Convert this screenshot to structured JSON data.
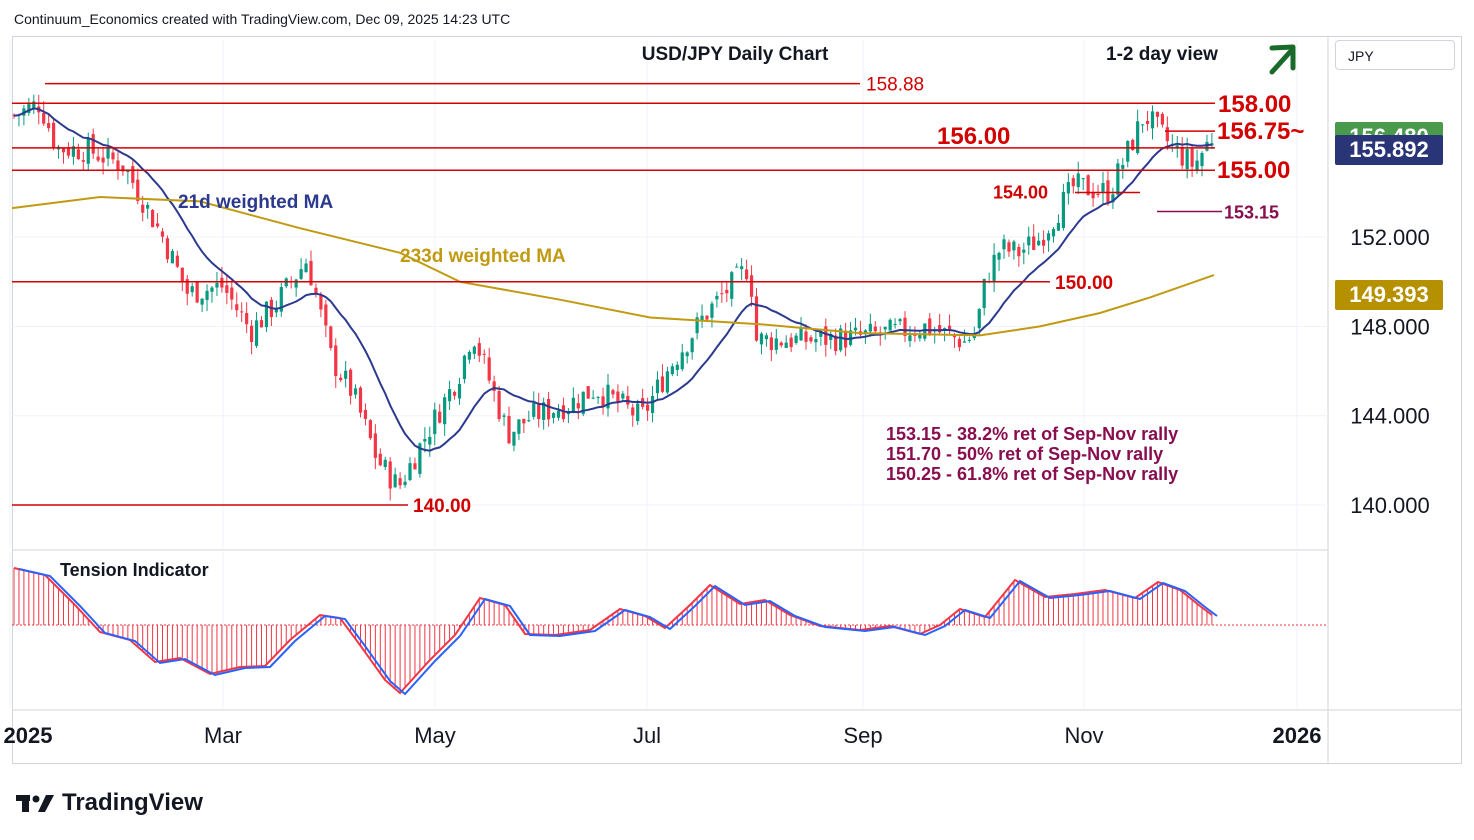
{
  "header": {
    "text": "Continuum_Economics created with TradingView.com, Dec 09, 2025 14:23 UTC"
  },
  "toolbar": {
    "currency": "JPY"
  },
  "brand": {
    "logo_text": "TradingView"
  },
  "colors": {
    "up": "#089981",
    "down": "#f23645",
    "ma21": "#2b3a8f",
    "ma233": "#c19a12",
    "level": "#d20000",
    "fib": "#880e4f",
    "arrow": "#1a6b2a",
    "last_price_bg": "#4a9a4c",
    "prev_close_bg": "#2a3577",
    "ma233_bg": "#b59100"
  },
  "chart_data": {
    "type": "candlestick",
    "title": "USD/JPY Daily Chart",
    "view_label": "1-2 day view",
    "view_direction": "up",
    "xlabel": "",
    "ylabel": "",
    "y_ticks": [
      "152.000",
      "148.000",
      "144.000",
      "140.000"
    ],
    "x_ticks": [
      "2025",
      "Mar",
      "May",
      "Jul",
      "Sep",
      "Nov",
      "2026"
    ],
    "price_badges": [
      {
        "label": "156.480",
        "value": 156.48,
        "kind": "last"
      },
      {
        "label": "155.892",
        "value": 155.892,
        "kind": "ma21"
      },
      {
        "label": "149.393",
        "value": 149.393,
        "kind": "ma233"
      }
    ],
    "levels": [
      {
        "label": "158.88",
        "value": 158.88
      },
      {
        "label": "158.00",
        "value": 158.0
      },
      {
        "label": "156.75~",
        "value": 156.75
      },
      {
        "label": "156.00",
        "value": 156.0
      },
      {
        "label": "155.00",
        "value": 155.0
      },
      {
        "label": "154.00",
        "value": 154.0
      },
      {
        "label": "153.15",
        "value": 153.15
      },
      {
        "label": "150.00",
        "value": 150.0
      },
      {
        "label": "140.00",
        "value": 140.0
      }
    ],
    "ma_labels": {
      "ma21": "21d weighted MA",
      "ma233": "233d weighted MA"
    },
    "notes": [
      "153.15 - 38.2% ret of Sep-Nov rally",
      "151.70 - 50% ret of Sep-Nov rally",
      "150.25 - 61.8% ret of Sep-Nov rally"
    ],
    "indicator": {
      "title": "Tension Indicator"
    },
    "close_path": {
      "dates": [
        "2025-01-02",
        "2025-01-10",
        "2025-01-15",
        "2025-01-24",
        "2025-02-03",
        "2025-02-14",
        "2025-02-21",
        "2025-03-03",
        "2025-03-11",
        "2025-03-18",
        "2025-03-27",
        "2025-04-03",
        "2025-04-09",
        "2025-04-16",
        "2025-04-22",
        "2025-04-30",
        "2025-05-09",
        "2025-05-13",
        "2025-05-23",
        "2025-05-30",
        "2025-06-09",
        "2025-06-17",
        "2025-06-30",
        "2025-07-08",
        "2025-07-18",
        "2025-07-31",
        "2025-08-01",
        "2025-08-15",
        "2025-08-29",
        "2025-09-12",
        "2025-09-19",
        "2025-09-30",
        "2025-10-03",
        "2025-10-06",
        "2025-10-10",
        "2025-10-15",
        "2025-10-21",
        "2025-10-31",
        "2025-11-10",
        "2025-11-20",
        "2025-11-28",
        "2025-12-04",
        "2025-12-09"
      ],
      "values": [
        157.4,
        158.0,
        156.0,
        155.9,
        155.2,
        152.0,
        149.5,
        149.8,
        147.8,
        149.0,
        151.0,
        146.5,
        145.0,
        142.0,
        140.8,
        143.2,
        145.8,
        147.8,
        143.2,
        144.0,
        144.5,
        145.2,
        143.9,
        146.2,
        148.5,
        150.8,
        147.4,
        147.4,
        147.5,
        147.8,
        148.0,
        147.3,
        147.8,
        150.2,
        151.5,
        151.3,
        151.9,
        154.3,
        154.0,
        157.5,
        156.0,
        155.2,
        156.48
      ]
    }
  }
}
